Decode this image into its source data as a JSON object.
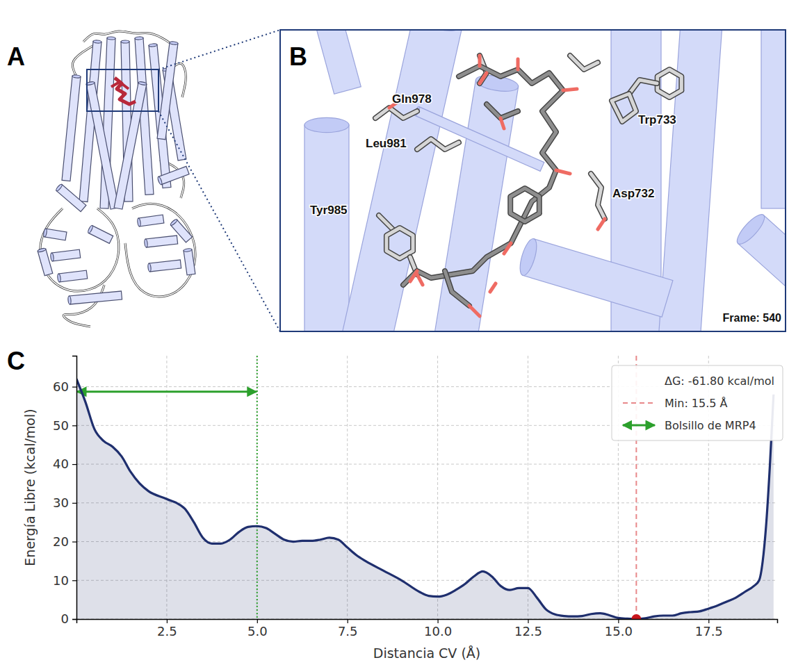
{
  "panel_labels": [
    "A",
    "B",
    "C"
  ],
  "structure": {
    "residues": [
      "Gln978",
      "Leu981",
      "Tyr985",
      "Trp733",
      "Asp732"
    ],
    "frame_label": "Frame: 540"
  },
  "chart_data": {
    "type": "line",
    "x_label": "Distancia CV (Å)",
    "y_label": "Energía Libre (kcal/mol)",
    "x": [
      0,
      0.25,
      0.5,
      0.75,
      1.0,
      1.25,
      1.5,
      1.75,
      2.0,
      2.5,
      3.0,
      3.25,
      3.5,
      3.75,
      4.0,
      4.25,
      4.5,
      4.75,
      5.0,
      5.25,
      5.5,
      5.75,
      6.0,
      6.25,
      6.5,
      6.75,
      7.0,
      7.25,
      7.5,
      7.75,
      8.0,
      8.5,
      9.0,
      9.5,
      9.75,
      10.0,
      10.25,
      10.5,
      10.75,
      11.0,
      11.25,
      11.5,
      11.75,
      12.0,
      12.25,
      12.5,
      12.75,
      13.0,
      13.25,
      13.5,
      13.75,
      14.0,
      14.25,
      14.5,
      14.75,
      15.0,
      15.25,
      15.5,
      15.75,
      16.0,
      16.25,
      16.5,
      16.75,
      17.0,
      17.25,
      17.5,
      17.75,
      18.0,
      18.25,
      18.5,
      18.75,
      18.9,
      19.0,
      19.1,
      19.2,
      19.3
    ],
    "values": [
      62,
      56,
      49,
      46,
      44.5,
      42,
      38,
      35,
      33,
      31,
      28.5,
      25,
      21,
      19.5,
      19.5,
      20.5,
      22.5,
      23.8,
      24,
      23.5,
      22,
      20.5,
      20,
      20.2,
      20.2,
      20.5,
      21,
      20.5,
      18.5,
      16.5,
      15,
      12.5,
      10,
      7,
      6,
      5.8,
      6.3,
      7.5,
      9,
      11,
      12.3,
      11,
      8.5,
      7.5,
      8,
      8,
      5.5,
      2.5,
      1.2,
      0.8,
      0.7,
      0.8,
      1.3,
      1.5,
      1.0,
      0.3,
      0.1,
      0,
      0.2,
      0.7,
      0.9,
      0.9,
      1.5,
      1.8,
      2,
      2.7,
      3.5,
      4.5,
      5.5,
      7,
      8.5,
      10,
      15,
      25,
      40,
      58
    ],
    "color": "#1f2f6e",
    "xlim": [
      0,
      19.4
    ],
    "ylim": [
      0,
      68
    ],
    "xticks": [
      2.5,
      {
        "value": 5,
        "label": "5.0"
      },
      7.5,
      {
        "value": 10,
        "label": "10.0"
      },
      12.5,
      {
        "value": 15,
        "label": "15.0"
      },
      17.5
    ],
    "yticks": [
      0,
      10,
      20,
      30,
      40,
      50,
      60
    ],
    "grid": true,
    "legend": "upper right",
    "annotations": [
      {
        "type": "text",
        "label": "ΔG: -61.80 kcal/mol"
      },
      {
        "type": "vline",
        "label": "Min: 15.5 Å",
        "x": 15.5,
        "y": 0,
        "color": "#e8888a",
        "line_style": "dashed",
        "marker": "circle"
      },
      {
        "type": "range_arrow",
        "label": "Bolsillo de MRP4",
        "x": [
          0,
          5
        ],
        "y": 58.7,
        "color": "#2ca02c",
        "line_style": "dotted"
      }
    ]
  }
}
